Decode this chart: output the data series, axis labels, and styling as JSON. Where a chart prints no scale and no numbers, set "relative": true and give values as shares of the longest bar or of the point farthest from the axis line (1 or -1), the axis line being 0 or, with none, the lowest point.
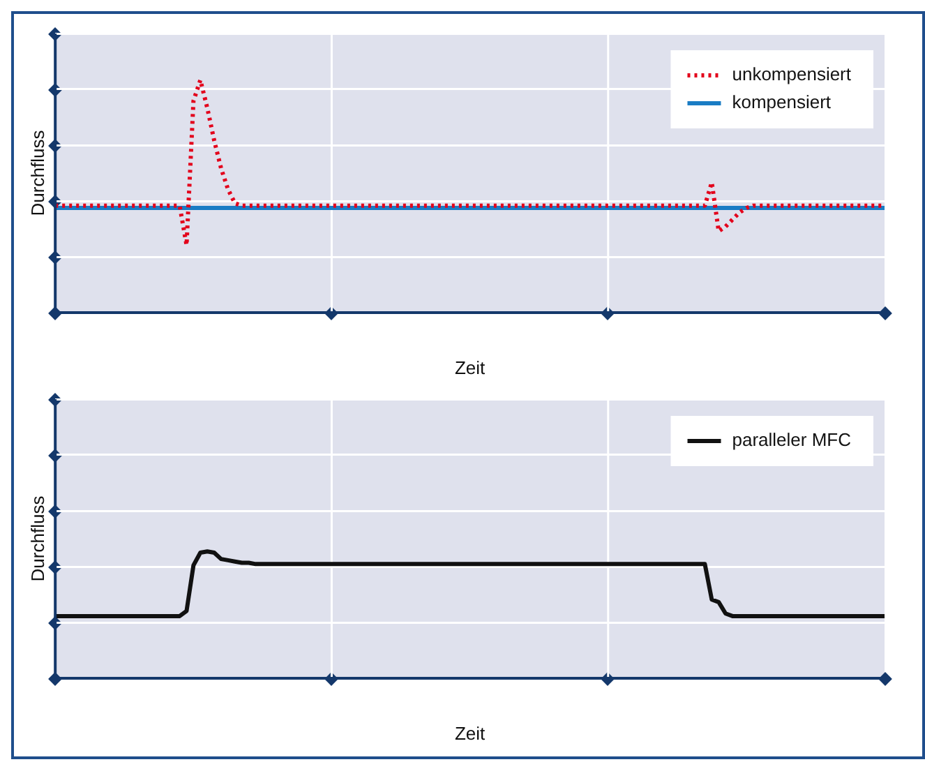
{
  "chart_data": [
    {
      "type": "line",
      "xlabel": "Zeit",
      "ylabel": "Durchfluss",
      "relative": true,
      "grid": true,
      "legend": "top right",
      "marker": "none",
      "categories": [
        null,
        null,
        null,
        null,
        null,
        null,
        null,
        null,
        null,
        null,
        null,
        null,
        null,
        null,
        null,
        null,
        null,
        null,
        null,
        null,
        null,
        null,
        null,
        null,
        null,
        null,
        null,
        null,
        null,
        null,
        null,
        null,
        null,
        null,
        null,
        null,
        null,
        null,
        null,
        null,
        null,
        null,
        null,
        null,
        null,
        null,
        null,
        null,
        null,
        null,
        null,
        null,
        null,
        null,
        null,
        null,
        null,
        null,
        null,
        null,
        null,
        null,
        null,
        null,
        null,
        null,
        null,
        null,
        null,
        null,
        null,
        null,
        null,
        null,
        null,
        null,
        null,
        null,
        null,
        null,
        null,
        null,
        null,
        null,
        null,
        null,
        null,
        null,
        null,
        null,
        null,
        null,
        null,
        null,
        null,
        null,
        null,
        null,
        null,
        null,
        null,
        null,
        null,
        null,
        null,
        null,
        null,
        null,
        null,
        null,
        null,
        null,
        null,
        null,
        null,
        null,
        null,
        null,
        null,
        null,
        null
      ],
      "series": [
        {
          "name": "unkompensiert",
          "color": "#e3001b",
          "line_style": "dotted",
          "values": [
            0.46,
            0.46,
            0.46,
            0.46,
            0.46,
            0.46,
            0.46,
            0.46,
            0.46,
            0.46,
            0.46,
            0.46,
            0.46,
            0.46,
            0.46,
            0.46,
            0.46,
            0.46,
            0.46,
            0.29,
            0.91,
            1.0,
            0.88,
            0.74,
            0.62,
            0.53,
            0.47,
            0.46,
            0.46,
            0.46,
            0.46,
            0.46,
            0.46,
            0.46,
            0.46,
            0.46,
            0.46,
            0.46,
            0.46,
            0.46,
            0.46,
            0.46,
            0.46,
            0.46,
            0.46,
            0.46,
            0.46,
            0.46,
            0.46,
            0.46,
            0.46,
            0.46,
            0.46,
            0.46,
            0.46,
            0.46,
            0.46,
            0.46,
            0.46,
            0.46,
            0.46,
            0.46,
            0.46,
            0.46,
            0.46,
            0.46,
            0.46,
            0.46,
            0.46,
            0.46,
            0.46,
            0.46,
            0.46,
            0.46,
            0.46,
            0.46,
            0.46,
            0.46,
            0.46,
            0.46,
            0.46,
            0.46,
            0.46,
            0.46,
            0.46,
            0.46,
            0.46,
            0.46,
            0.46,
            0.46,
            0.46,
            0.46,
            0.46,
            0.46,
            0.46,
            0.56,
            0.35,
            0.37,
            0.4,
            0.43,
            0.45,
            0.46,
            0.46,
            0.46,
            0.46,
            0.46,
            0.46,
            0.46,
            0.46,
            0.46,
            0.46,
            0.46,
            0.46,
            0.46,
            0.46,
            0.46,
            0.46,
            0.46,
            0.46,
            0.46,
            0.46
          ]
        },
        {
          "name": "kompensiert",
          "color": "#1a7cc4",
          "line_style": "solid",
          "values": [
            0.45,
            0.45,
            0.45,
            0.45,
            0.45,
            0.45,
            0.45,
            0.45,
            0.45,
            0.45,
            0.45,
            0.45,
            0.45,
            0.45,
            0.45,
            0.45,
            0.45,
            0.45,
            0.45,
            0.45,
            0.45,
            0.45,
            0.45,
            0.45,
            0.45,
            0.45,
            0.45,
            0.45,
            0.45,
            0.45,
            0.45,
            0.45,
            0.45,
            0.45,
            0.45,
            0.45,
            0.45,
            0.45,
            0.45,
            0.45,
            0.45,
            0.45,
            0.45,
            0.45,
            0.45,
            0.45,
            0.45,
            0.45,
            0.45,
            0.45,
            0.45,
            0.45,
            0.45,
            0.45,
            0.45,
            0.45,
            0.45,
            0.45,
            0.45,
            0.45,
            0.45,
            0.45,
            0.45,
            0.45,
            0.45,
            0.45,
            0.45,
            0.45,
            0.45,
            0.45,
            0.45,
            0.45,
            0.45,
            0.45,
            0.45,
            0.45,
            0.45,
            0.45,
            0.45,
            0.45,
            0.45,
            0.45,
            0.45,
            0.45,
            0.45,
            0.45,
            0.45,
            0.45,
            0.45,
            0.45,
            0.45,
            0.45,
            0.45,
            0.45,
            0.45,
            0.45,
            0.45,
            0.45,
            0.45,
            0.45,
            0.45,
            0.45,
            0.45,
            0.45,
            0.45,
            0.45,
            0.45,
            0.45,
            0.45,
            0.45,
            0.45,
            0.45,
            0.45,
            0.45,
            0.45,
            0.45,
            0.45,
            0.45,
            0.45,
            0.45,
            0.45
          ]
        }
      ]
    },
    {
      "type": "line",
      "xlabel": "Zeit",
      "ylabel": "Durchfluss",
      "relative": true,
      "grid": true,
      "legend": "top right",
      "marker": "none",
      "categories": [
        null,
        null,
        null,
        null,
        null,
        null,
        null,
        null,
        null,
        null,
        null,
        null,
        null,
        null,
        null,
        null,
        null,
        null,
        null,
        null,
        null,
        null,
        null,
        null,
        null,
        null,
        null,
        null,
        null,
        null,
        null,
        null,
        null,
        null,
        null,
        null,
        null,
        null,
        null,
        null,
        null,
        null,
        null,
        null,
        null,
        null,
        null,
        null,
        null,
        null,
        null,
        null,
        null,
        null,
        null,
        null,
        null,
        null,
        null,
        null,
        null,
        null,
        null,
        null,
        null,
        null,
        null,
        null,
        null,
        null,
        null,
        null,
        null,
        null,
        null,
        null,
        null,
        null,
        null,
        null,
        null,
        null,
        null,
        null,
        null,
        null,
        null,
        null,
        null,
        null,
        null,
        null,
        null,
        null,
        null,
        null,
        null,
        null,
        null,
        null,
        null,
        null,
        null,
        null,
        null,
        null,
        null,
        null,
        null,
        null,
        null,
        null,
        null,
        null,
        null,
        null,
        null,
        null,
        null,
        null,
        null
      ],
      "series": [
        {
          "name": "paralleler MFC",
          "color": "#111111",
          "line_style": "solid",
          "values": [
            0.49,
            0.49,
            0.49,
            0.49,
            0.49,
            0.49,
            0.49,
            0.49,
            0.49,
            0.49,
            0.49,
            0.49,
            0.49,
            0.49,
            0.49,
            0.49,
            0.49,
            0.49,
            0.49,
            0.53,
            0.89,
            0.99,
            1.0,
            0.99,
            0.94,
            0.93,
            0.92,
            0.91,
            0.91,
            0.9,
            0.9,
            0.9,
            0.9,
            0.9,
            0.9,
            0.9,
            0.9,
            0.9,
            0.9,
            0.9,
            0.9,
            0.9,
            0.9,
            0.9,
            0.9,
            0.9,
            0.9,
            0.9,
            0.9,
            0.9,
            0.9,
            0.9,
            0.9,
            0.9,
            0.9,
            0.9,
            0.9,
            0.9,
            0.9,
            0.9,
            0.9,
            0.9,
            0.9,
            0.9,
            0.9,
            0.9,
            0.9,
            0.9,
            0.9,
            0.9,
            0.9,
            0.9,
            0.9,
            0.9,
            0.9,
            0.9,
            0.9,
            0.9,
            0.9,
            0.9,
            0.9,
            0.9,
            0.9,
            0.9,
            0.9,
            0.9,
            0.9,
            0.9,
            0.9,
            0.9,
            0.9,
            0.9,
            0.9,
            0.9,
            0.9,
            0.62,
            0.6,
            0.51,
            0.49,
            0.49,
            0.49,
            0.49,
            0.49,
            0.49,
            0.49,
            0.49,
            0.49,
            0.49,
            0.49,
            0.49,
            0.49,
            0.49,
            0.49,
            0.49,
            0.49,
            0.49,
            0.49,
            0.49,
            0.49,
            0.49,
            0.49
          ]
        }
      ]
    }
  ]
}
